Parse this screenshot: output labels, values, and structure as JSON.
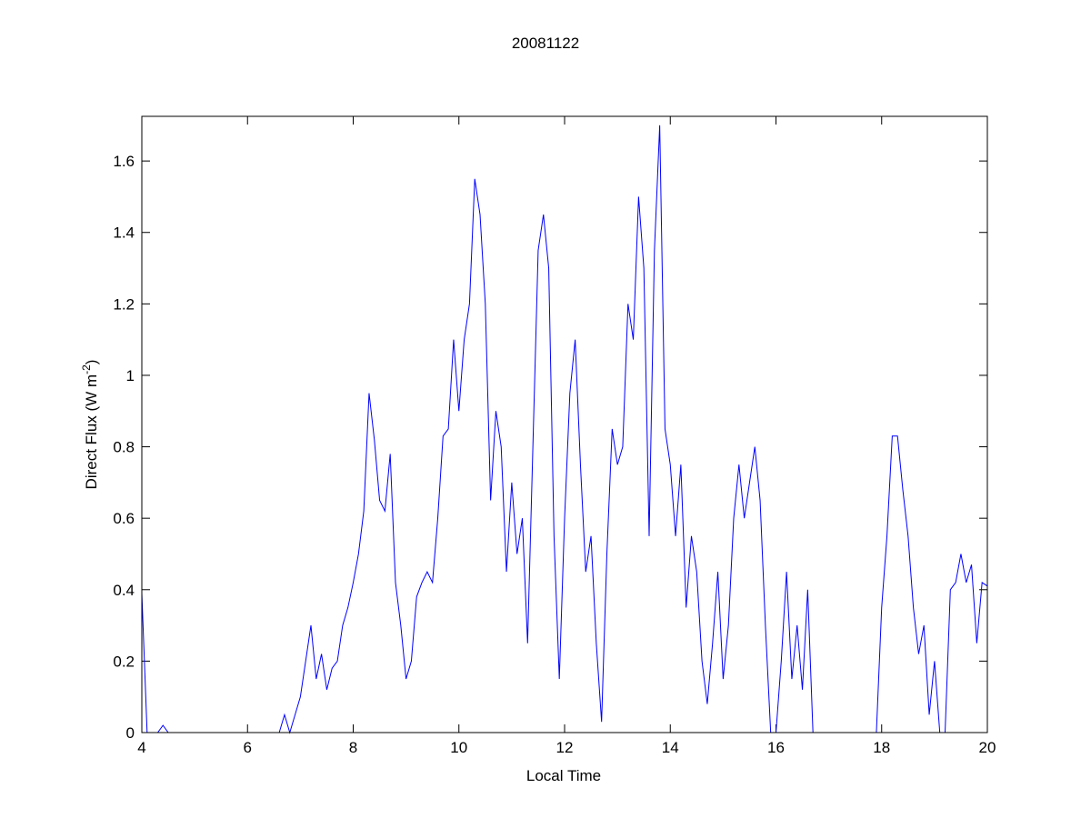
{
  "chart_data": {
    "type": "line",
    "title": "20081122",
    "x_label": "Local Time",
    "y_label": {
      "text": "Direct Flux (W m",
      "sup": "-2",
      "close": ")"
    },
    "xlim": [
      4,
      20
    ],
    "xticks": [
      4,
      6,
      8,
      10,
      12,
      14,
      16,
      18,
      20
    ],
    "ylim": [
      0,
      1.725
    ],
    "yticks": [
      0,
      0.2,
      0.4,
      0.6,
      0.8,
      1,
      1.2,
      1.4,
      1.6
    ],
    "grid": false,
    "x": [
      4,
      4.1,
      4.2,
      4.3,
      4.4,
      4.5,
      4.6,
      4.7,
      4.8,
      4.9,
      5,
      5.1,
      5.2,
      5.3,
      5.4,
      5.5,
      5.6,
      5.7,
      5.8,
      5.9,
      6,
      6.1,
      6.2,
      6.3,
      6.4,
      6.5,
      6.6,
      6.7,
      6.8,
      6.9,
      7,
      7.1,
      7.2,
      7.3,
      7.4,
      7.5,
      7.6,
      7.7,
      7.8,
      7.9,
      8,
      8.1,
      8.2,
      8.3,
      8.4,
      8.5,
      8.6,
      8.7,
      8.8,
      8.9,
      9,
      9.1,
      9.2,
      9.3,
      9.4,
      9.5,
      9.6,
      9.7,
      9.8,
      9.9,
      10,
      10.1,
      10.2,
      10.3,
      10.4,
      10.5,
      10.6,
      10.7,
      10.8,
      10.9,
      11,
      11.1,
      11.2,
      11.3,
      11.4,
      11.5,
      11.6,
      11.7,
      11.8,
      11.9,
      12,
      12.1,
      12.2,
      12.3,
      12.4,
      12.5,
      12.6,
      12.7,
      12.8,
      12.9,
      13,
      13.1,
      13.2,
      13.3,
      13.4,
      13.5,
      13.6,
      13.7,
      13.8,
      13.9,
      14,
      14.1,
      14.2,
      14.3,
      14.4,
      14.5,
      14.6,
      14.7,
      14.8,
      14.9,
      15,
      15.1,
      15.2,
      15.3,
      15.4,
      15.5,
      15.6,
      15.7,
      15.8,
      15.9,
      16,
      16.1,
      16.2,
      16.3,
      16.4,
      16.5,
      16.6,
      16.7,
      16.8,
      16.9,
      17,
      17.1,
      17.2,
      17.3,
      17.4,
      17.5,
      17.6,
      17.7,
      17.8,
      17.9,
      18,
      18.1,
      18.2,
      18.3,
      18.4,
      18.5,
      18.6,
      18.7,
      18.8,
      18.9,
      19,
      19.1,
      19.2,
      19.3,
      19.4,
      19.5,
      19.6,
      19.7,
      19.8,
      19.9,
      20
    ],
    "series": [
      {
        "name": "Direct Flux",
        "color": "#0000ff",
        "values": [
          0.39,
          0,
          0,
          0,
          0.02,
          0,
          0,
          0,
          0,
          0,
          0,
          0,
          0,
          0,
          0,
          0,
          0,
          0,
          0,
          0,
          0,
          0,
          0,
          0,
          0,
          0,
          0,
          0.05,
          0,
          0.05,
          0.1,
          0.2,
          0.3,
          0.15,
          0.22,
          0.12,
          0.18,
          0.2,
          0.3,
          0.35,
          0.42,
          0.5,
          0.62,
          0.95,
          0.82,
          0.65,
          0.62,
          0.78,
          0.42,
          0.3,
          0.15,
          0.2,
          0.38,
          0.42,
          0.45,
          0.42,
          0.6,
          0.83,
          0.85,
          1.1,
          0.9,
          1.1,
          1.2,
          1.55,
          1.45,
          1.2,
          0.65,
          0.9,
          0.8,
          0.45,
          0.7,
          0.5,
          0.6,
          0.25,
          0.8,
          1.35,
          1.45,
          1.3,
          0.55,
          0.15,
          0.6,
          0.95,
          1.1,
          0.75,
          0.45,
          0.55,
          0.25,
          0.03,
          0.5,
          0.85,
          0.75,
          0.8,
          1.2,
          1.1,
          1.5,
          1.3,
          0.55,
          1.35,
          1.7,
          0.85,
          0.75,
          0.55,
          0.75,
          0.35,
          0.55,
          0.45,
          0.2,
          0.08,
          0.25,
          0.45,
          0.15,
          0.3,
          0.6,
          0.75,
          0.6,
          0.7,
          0.8,
          0.65,
          0.3,
          0,
          0,
          0.2,
          0.45,
          0.15,
          0.3,
          0.12,
          0.4,
          0,
          0,
          0,
          0,
          0,
          0,
          0,
          0,
          0,
          0,
          0,
          0,
          0,
          0.35,
          0.55,
          0.83,
          0.83,
          0.68,
          0.55,
          0.35,
          0.22,
          0.3,
          0.05,
          0.2,
          0,
          0,
          0.4,
          0.42,
          0.5,
          0.42,
          0.47,
          0.25,
          0.42,
          0.41
        ]
      }
    ]
  }
}
